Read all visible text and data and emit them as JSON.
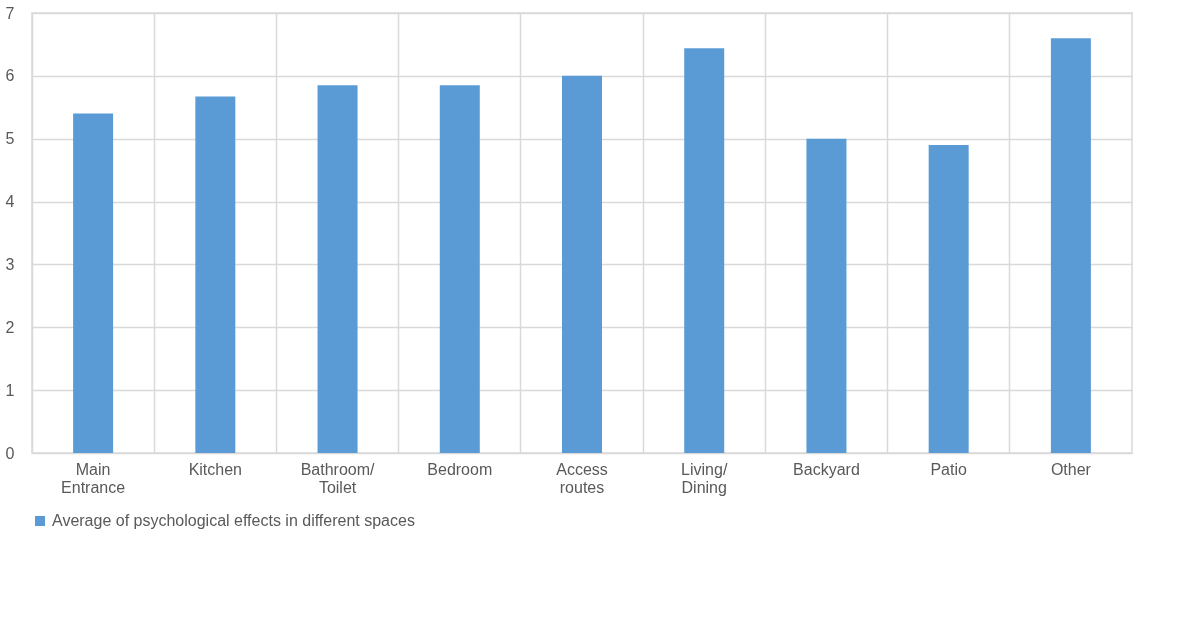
{
  "chart_data": {
    "type": "bar",
    "categories": [
      "Main\nEntrance",
      "Kitchen",
      "Bathroom/\nToilet",
      "Bedroom",
      "Access\nroutes",
      "Living/\nDining",
      "Backyard",
      "Patio",
      "Other"
    ],
    "series": [
      {
        "name": "Average of psychological effects in different spaces",
        "color": "#5b9bd5",
        "values": [
          5.4,
          5.67,
          5.85,
          5.85,
          6.0,
          6.44,
          5.0,
          4.9,
          6.6
        ]
      }
    ],
    "ylim": [
      0,
      7
    ],
    "yticks": [
      0,
      1,
      2,
      3,
      4,
      5,
      6,
      7
    ],
    "grid": true,
    "legend": "bottom"
  }
}
